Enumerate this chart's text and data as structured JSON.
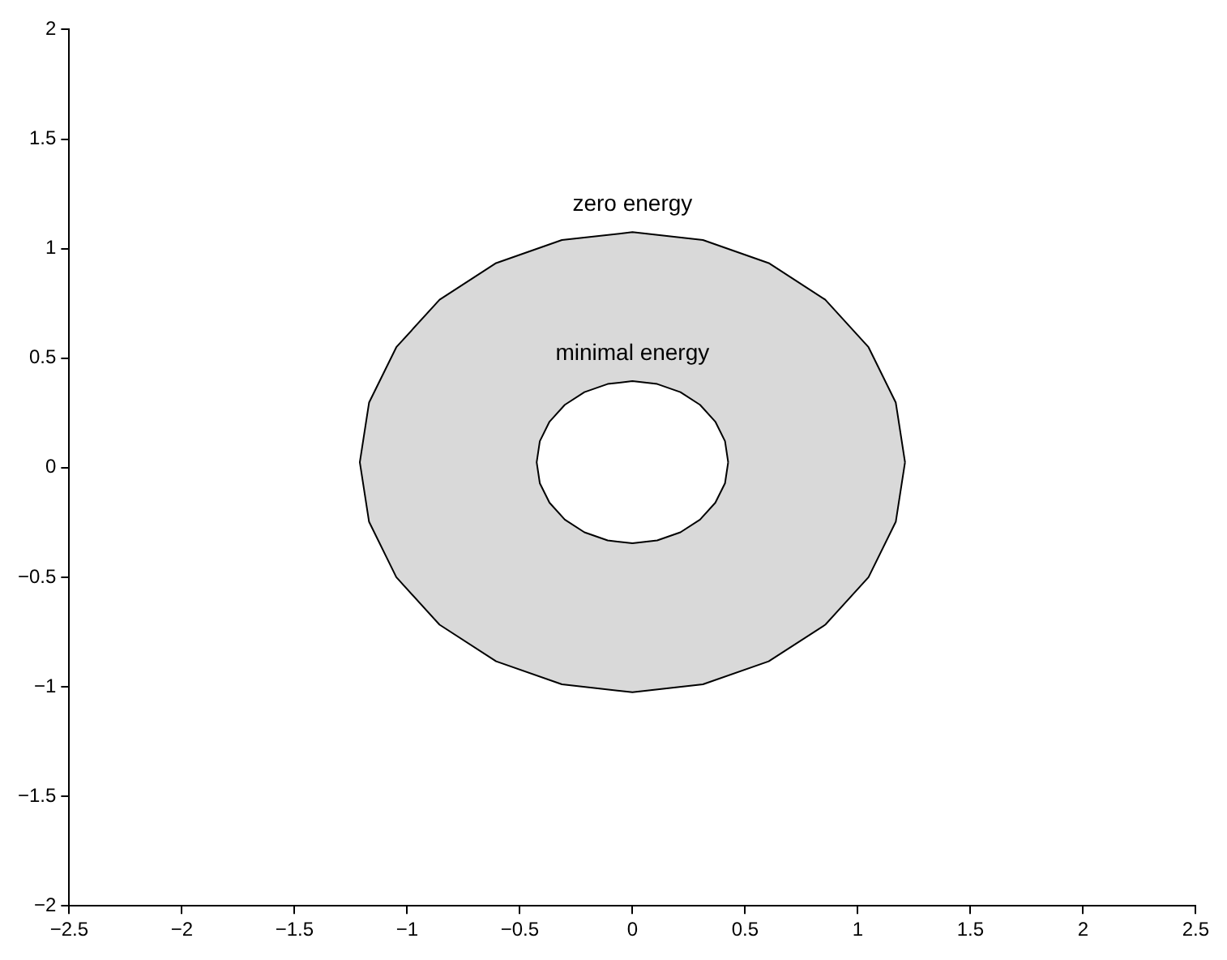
{
  "chart_data": {
    "type": "area",
    "xlim": [
      -2.5,
      2.5
    ],
    "ylim": [
      -2,
      2
    ],
    "xticks": [
      {
        "value": -2.5,
        "label": "−2.5"
      },
      {
        "value": -2,
        "label": "−2"
      },
      {
        "value": -1.5,
        "label": "−1.5"
      },
      {
        "value": -1,
        "label": "−1"
      },
      {
        "value": -0.5,
        "label": "−0.5"
      },
      0,
      0.5,
      1,
      1.5,
      2,
      2.5
    ],
    "yticks": [
      {
        "value": -2,
        "label": "−2"
      },
      {
        "value": -1.5,
        "label": "−1.5"
      },
      {
        "value": -1,
        "label": "−1"
      },
      {
        "value": -0.5,
        "label": "−0.5"
      },
      0,
      0.5,
      1,
      1.5,
      2
    ],
    "grid": false,
    "legend": false,
    "series": [
      {
        "color": "#d9d9d9",
        "x": [
          1.21,
          1.169,
          1.048,
          0.856,
          0.605,
          0.313,
          0,
          -0.313,
          -0.605,
          -0.856,
          -1.048,
          -1.169,
          -1.21,
          -1.169,
          -1.048,
          -0.856,
          -0.605,
          -0.313,
          0,
          0.313,
          0.605,
          0.856,
          1.048,
          1.169,
          1.21
        ],
        "values": [
          0.025,
          0.297,
          0.55,
          0.767,
          0.934,
          1.039,
          1.075,
          1.039,
          0.934,
          0.767,
          0.55,
          0.297,
          0.025,
          -0.247,
          -0.5,
          -0.717,
          -0.884,
          -0.989,
          -1.025,
          -0.989,
          -0.884,
          -0.717,
          -0.5,
          -0.247,
          0.025
        ]
      },
      {
        "color": "#ffffff",
        "x": [
          0.425,
          0.411,
          0.368,
          0.3,
          0.213,
          0.11,
          0,
          -0.11,
          -0.213,
          -0.3,
          -0.368,
          -0.411,
          -0.425,
          -0.411,
          -0.368,
          -0.3,
          -0.213,
          -0.11,
          0,
          0.11,
          0.213,
          0.3,
          0.368,
          0.411,
          0.425
        ],
        "values": [
          0.025,
          0.121,
          0.21,
          0.287,
          0.345,
          0.382,
          0.395,
          0.382,
          0.345,
          0.287,
          0.21,
          0.121,
          0.025,
          -0.071,
          -0.16,
          -0.237,
          -0.295,
          -0.332,
          -0.345,
          -0.332,
          -0.295,
          -0.237,
          -0.16,
          -0.071,
          0.025
        ]
      }
    ],
    "annotations": [
      "zero energy",
      "minimal energy"
    ]
  }
}
